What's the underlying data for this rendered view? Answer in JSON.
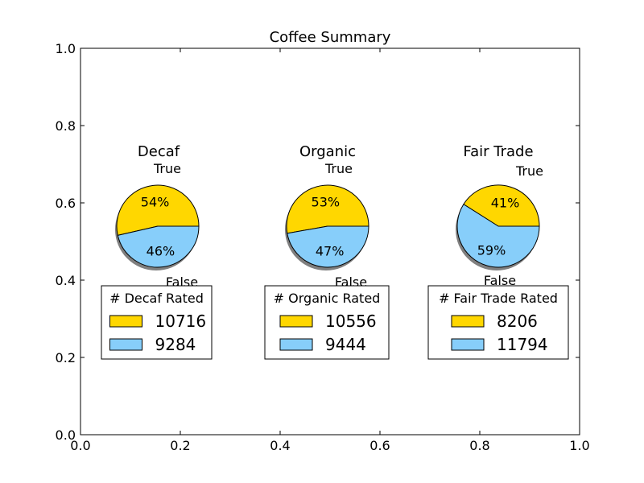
{
  "chart_data": {
    "type": "pie",
    "title": "Coffee Summary",
    "xlim": [
      0,
      1
    ],
    "ylim": [
      0,
      1
    ],
    "x_ticks": [
      "0.0",
      "0.2",
      "0.4",
      "0.6",
      "0.8",
      "1.0"
    ],
    "y_ticks": [
      "0.0",
      "0.2",
      "0.4",
      "0.6",
      "0.8",
      "1.0"
    ],
    "grid": false,
    "colors": {
      "true": "#FFD700",
      "false": "#87CEFA",
      "shadow": "#7f7f7f"
    },
    "pies": [
      {
        "title": "Decaf",
        "labels": [
          "True",
          "False"
        ],
        "percent_labels": [
          "54%",
          "46%"
        ],
        "values": [
          10716,
          9284
        ],
        "legend_title": "# Decaf Rated",
        "legend_entries": [
          "10716",
          "9284"
        ]
      },
      {
        "title": "Organic",
        "labels": [
          "True",
          "False"
        ],
        "percent_labels": [
          "53%",
          "47%"
        ],
        "values": [
          10556,
          9444
        ],
        "legend_title": "# Organic Rated",
        "legend_entries": [
          "10556",
          "9444"
        ]
      },
      {
        "title": "Fair Trade",
        "labels": [
          "True",
          "False"
        ],
        "percent_labels": [
          "41%",
          "59%"
        ],
        "values": [
          8206,
          11794
        ],
        "legend_title": "# Fair Trade Rated",
        "legend_entries": [
          "8206",
          "11794"
        ]
      }
    ]
  }
}
